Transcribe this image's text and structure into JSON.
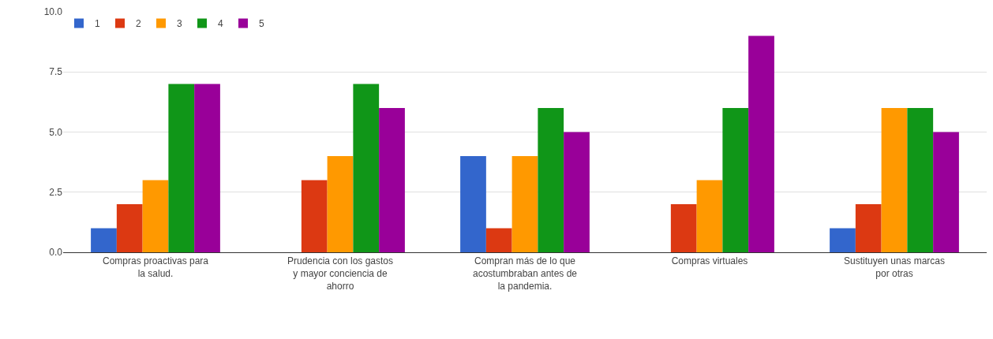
{
  "chart_data": {
    "type": "bar",
    "categories": [
      "Compras proactivas para la salud.",
      "Prudencia con los gastos y mayor conciencia de ahorro",
      "Compran más de lo que acostumbraban antes de la pandemia.",
      "Compras virtuales",
      "Sustituyen unas marcas por otras"
    ],
    "series": [
      {
        "name": "1",
        "color": "#3366cc",
        "values": [
          1,
          null,
          4,
          null,
          1
        ]
      },
      {
        "name": "2",
        "color": "#dc3912",
        "values": [
          2,
          3,
          1,
          2,
          2
        ]
      },
      {
        "name": "3",
        "color": "#ff9900",
        "values": [
          3,
          4,
          4,
          3,
          6
        ]
      },
      {
        "name": "4",
        "color": "#109618",
        "values": [
          7,
          7,
          6,
          6,
          6
        ]
      },
      {
        "name": "5",
        "color": "#990099",
        "values": [
          7,
          6,
          5,
          9,
          5
        ]
      }
    ],
    "ylim": [
      0,
      10
    ],
    "yticks": [
      {
        "value": 0,
        "label": "0.0"
      },
      {
        "value": 2.5,
        "label": "2.5"
      },
      {
        "value": 5,
        "label": "5.0"
      },
      {
        "value": 7.5,
        "label": "7.5"
      },
      {
        "value": 10,
        "label": "10.0"
      }
    ],
    "grid": "y",
    "legend": "top left"
  }
}
